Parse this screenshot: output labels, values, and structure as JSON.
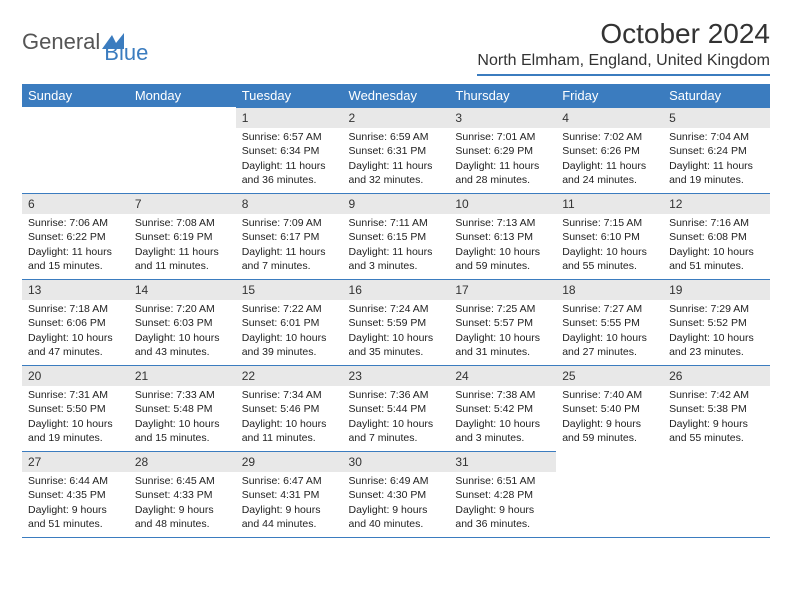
{
  "logo": {
    "part1": "General",
    "part2": "Blue"
  },
  "title": "October 2024",
  "location": "North Elmham, England, United Kingdom",
  "colors": {
    "accent": "#3b7cbf",
    "header_bg": "#3b7cbf",
    "header_text": "#ffffff",
    "daybar_bg": "#e8e8e8",
    "text": "#333333",
    "bg": "#ffffff"
  },
  "day_headers": [
    "Sunday",
    "Monday",
    "Tuesday",
    "Wednesday",
    "Thursday",
    "Friday",
    "Saturday"
  ],
  "weeks": [
    [
      null,
      null,
      {
        "num": "1",
        "sunrise": "Sunrise: 6:57 AM",
        "sunset": "Sunset: 6:34 PM",
        "daylight": "Daylight: 11 hours and 36 minutes."
      },
      {
        "num": "2",
        "sunrise": "Sunrise: 6:59 AM",
        "sunset": "Sunset: 6:31 PM",
        "daylight": "Daylight: 11 hours and 32 minutes."
      },
      {
        "num": "3",
        "sunrise": "Sunrise: 7:01 AM",
        "sunset": "Sunset: 6:29 PM",
        "daylight": "Daylight: 11 hours and 28 minutes."
      },
      {
        "num": "4",
        "sunrise": "Sunrise: 7:02 AM",
        "sunset": "Sunset: 6:26 PM",
        "daylight": "Daylight: 11 hours and 24 minutes."
      },
      {
        "num": "5",
        "sunrise": "Sunrise: 7:04 AM",
        "sunset": "Sunset: 6:24 PM",
        "daylight": "Daylight: 11 hours and 19 minutes."
      }
    ],
    [
      {
        "num": "6",
        "sunrise": "Sunrise: 7:06 AM",
        "sunset": "Sunset: 6:22 PM",
        "daylight": "Daylight: 11 hours and 15 minutes."
      },
      {
        "num": "7",
        "sunrise": "Sunrise: 7:08 AM",
        "sunset": "Sunset: 6:19 PM",
        "daylight": "Daylight: 11 hours and 11 minutes."
      },
      {
        "num": "8",
        "sunrise": "Sunrise: 7:09 AM",
        "sunset": "Sunset: 6:17 PM",
        "daylight": "Daylight: 11 hours and 7 minutes."
      },
      {
        "num": "9",
        "sunrise": "Sunrise: 7:11 AM",
        "sunset": "Sunset: 6:15 PM",
        "daylight": "Daylight: 11 hours and 3 minutes."
      },
      {
        "num": "10",
        "sunrise": "Sunrise: 7:13 AM",
        "sunset": "Sunset: 6:13 PM",
        "daylight": "Daylight: 10 hours and 59 minutes."
      },
      {
        "num": "11",
        "sunrise": "Sunrise: 7:15 AM",
        "sunset": "Sunset: 6:10 PM",
        "daylight": "Daylight: 10 hours and 55 minutes."
      },
      {
        "num": "12",
        "sunrise": "Sunrise: 7:16 AM",
        "sunset": "Sunset: 6:08 PM",
        "daylight": "Daylight: 10 hours and 51 minutes."
      }
    ],
    [
      {
        "num": "13",
        "sunrise": "Sunrise: 7:18 AM",
        "sunset": "Sunset: 6:06 PM",
        "daylight": "Daylight: 10 hours and 47 minutes."
      },
      {
        "num": "14",
        "sunrise": "Sunrise: 7:20 AM",
        "sunset": "Sunset: 6:03 PM",
        "daylight": "Daylight: 10 hours and 43 minutes."
      },
      {
        "num": "15",
        "sunrise": "Sunrise: 7:22 AM",
        "sunset": "Sunset: 6:01 PM",
        "daylight": "Daylight: 10 hours and 39 minutes."
      },
      {
        "num": "16",
        "sunrise": "Sunrise: 7:24 AM",
        "sunset": "Sunset: 5:59 PM",
        "daylight": "Daylight: 10 hours and 35 minutes."
      },
      {
        "num": "17",
        "sunrise": "Sunrise: 7:25 AM",
        "sunset": "Sunset: 5:57 PM",
        "daylight": "Daylight: 10 hours and 31 minutes."
      },
      {
        "num": "18",
        "sunrise": "Sunrise: 7:27 AM",
        "sunset": "Sunset: 5:55 PM",
        "daylight": "Daylight: 10 hours and 27 minutes."
      },
      {
        "num": "19",
        "sunrise": "Sunrise: 7:29 AM",
        "sunset": "Sunset: 5:52 PM",
        "daylight": "Daylight: 10 hours and 23 minutes."
      }
    ],
    [
      {
        "num": "20",
        "sunrise": "Sunrise: 7:31 AM",
        "sunset": "Sunset: 5:50 PM",
        "daylight": "Daylight: 10 hours and 19 minutes."
      },
      {
        "num": "21",
        "sunrise": "Sunrise: 7:33 AM",
        "sunset": "Sunset: 5:48 PM",
        "daylight": "Daylight: 10 hours and 15 minutes."
      },
      {
        "num": "22",
        "sunrise": "Sunrise: 7:34 AM",
        "sunset": "Sunset: 5:46 PM",
        "daylight": "Daylight: 10 hours and 11 minutes."
      },
      {
        "num": "23",
        "sunrise": "Sunrise: 7:36 AM",
        "sunset": "Sunset: 5:44 PM",
        "daylight": "Daylight: 10 hours and 7 minutes."
      },
      {
        "num": "24",
        "sunrise": "Sunrise: 7:38 AM",
        "sunset": "Sunset: 5:42 PM",
        "daylight": "Daylight: 10 hours and 3 minutes."
      },
      {
        "num": "25",
        "sunrise": "Sunrise: 7:40 AM",
        "sunset": "Sunset: 5:40 PM",
        "daylight": "Daylight: 9 hours and 59 minutes."
      },
      {
        "num": "26",
        "sunrise": "Sunrise: 7:42 AM",
        "sunset": "Sunset: 5:38 PM",
        "daylight": "Daylight: 9 hours and 55 minutes."
      }
    ],
    [
      {
        "num": "27",
        "sunrise": "Sunrise: 6:44 AM",
        "sunset": "Sunset: 4:35 PM",
        "daylight": "Daylight: 9 hours and 51 minutes."
      },
      {
        "num": "28",
        "sunrise": "Sunrise: 6:45 AM",
        "sunset": "Sunset: 4:33 PM",
        "daylight": "Daylight: 9 hours and 48 minutes."
      },
      {
        "num": "29",
        "sunrise": "Sunrise: 6:47 AM",
        "sunset": "Sunset: 4:31 PM",
        "daylight": "Daylight: 9 hours and 44 minutes."
      },
      {
        "num": "30",
        "sunrise": "Sunrise: 6:49 AM",
        "sunset": "Sunset: 4:30 PM",
        "daylight": "Daylight: 9 hours and 40 minutes."
      },
      {
        "num": "31",
        "sunrise": "Sunrise: 6:51 AM",
        "sunset": "Sunset: 4:28 PM",
        "daylight": "Daylight: 9 hours and 36 minutes."
      },
      null,
      null
    ]
  ]
}
